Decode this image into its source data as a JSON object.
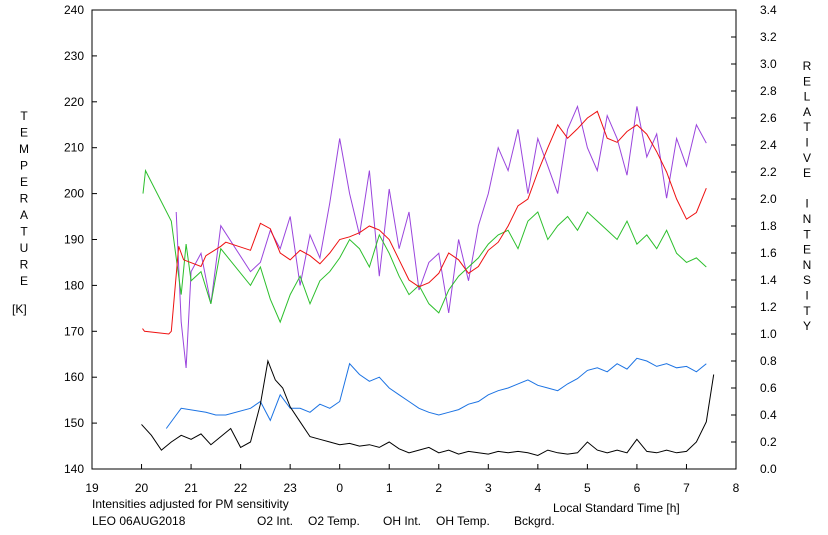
{
  "chart_data": {
    "type": "line",
    "ylabel_left": [
      "T",
      "E",
      "M",
      "P",
      "E",
      "R",
      "A",
      "T",
      "U",
      "R",
      "E"
    ],
    "ylabel_left_unit": "[K]",
    "ylabel_right": [
      "R",
      "E",
      "L",
      "A",
      "T",
      "I",
      "V",
      "E",
      "",
      "I",
      "N",
      "T",
      "E",
      "N",
      "S",
      "I",
      "T",
      "Y"
    ],
    "xlabel": "Local Standard Time [h]",
    "note": "Intensities adjusted for PM sensitivity",
    "station": "LEO 06AUG2018",
    "x_range": [
      19,
      32
    ],
    "x_tick_labels": [
      "19",
      "20",
      "21",
      "22",
      "23",
      "0",
      "1",
      "2",
      "3",
      "4",
      "5",
      "6",
      "7",
      "8"
    ],
    "y_left_range": [
      140,
      240
    ],
    "y_left_ticks": [
      "140",
      "150",
      "160",
      "170",
      "180",
      "190",
      "200",
      "210",
      "220",
      "230",
      "240"
    ],
    "y_right_range": [
      0,
      3.4
    ],
    "y_right_ticks": [
      "0.0",
      "0.2",
      "0.4",
      "0.6",
      "0.8",
      "1.0",
      "1.2",
      "1.4",
      "1.6",
      "1.8",
      "2.0",
      "2.2",
      "2.4",
      "2.6",
      "2.8",
      "3.0",
      "3.2",
      "3.4"
    ],
    "grid": false,
    "legend": [
      {
        "label": "O2 Int.",
        "color": "#1c73e3"
      },
      {
        "label": "O2 Temp.",
        "color": "#9a45dd"
      },
      {
        "label": "OH Int.",
        "color": "#ee1111"
      },
      {
        "label": "OH Temp.",
        "color": "#2cbf2c"
      },
      {
        "label": "Bckgrd.",
        "color": "#000000"
      }
    ],
    "note_color": "#2cbf2c",
    "series": [
      {
        "name": "O2 Temp.",
        "axis": "left",
        "color": "#9a45dd",
        "x": [
          20.7,
          20.8,
          20.9,
          21.0,
          21.2,
          21.4,
          21.6,
          22.2,
          22.4,
          22.6,
          22.8,
          23.0,
          23.2,
          23.4,
          23.6,
          23.8,
          24.0,
          24.2,
          24.4,
          24.6,
          24.8,
          25.0,
          25.2,
          25.4,
          25.6,
          25.8,
          26.0,
          26.2,
          26.4,
          26.6,
          26.8,
          27.0,
          27.2,
          27.4,
          27.6,
          27.8,
          28.0,
          28.2,
          28.4,
          28.6,
          28.8,
          29.0,
          29.2,
          29.4,
          29.6,
          29.8,
          30.0,
          30.2,
          30.4,
          30.6,
          30.8,
          31.0,
          31.2,
          31.4
        ],
        "y": [
          196,
          172,
          162,
          183,
          187,
          176,
          193,
          183,
          185,
          192,
          188,
          195,
          180,
          191,
          186,
          198,
          212,
          200,
          191,
          205,
          182,
          201,
          188,
          196,
          179,
          185,
          187,
          174,
          190,
          181,
          193,
          200,
          210,
          205,
          214,
          200,
          212,
          206,
          200,
          214,
          219,
          210,
          205,
          217,
          212,
          204,
          219,
          208,
          213,
          199,
          212,
          206,
          215,
          211
        ]
      },
      {
        "name": "OH Temp.",
        "axis": "left",
        "color": "#2cbf2c",
        "x": [
          20.03,
          20.08,
          20.6,
          20.7,
          20.8,
          20.9,
          21.0,
          21.2,
          21.4,
          21.6,
          22.2,
          22.4,
          22.6,
          22.8,
          23.0,
          23.2,
          23.4,
          23.6,
          23.8,
          24.0,
          24.2,
          24.4,
          24.6,
          24.8,
          25.0,
          25.2,
          25.4,
          25.6,
          25.8,
          26.0,
          26.2,
          26.4,
          26.6,
          26.8,
          27.0,
          27.2,
          27.4,
          27.6,
          27.8,
          28.0,
          28.2,
          28.4,
          28.6,
          28.8,
          29.0,
          29.2,
          29.4,
          29.6,
          29.8,
          30.0,
          30.2,
          30.4,
          30.6,
          30.8,
          31.0,
          31.2,
          31.4
        ],
        "y": [
          200,
          205,
          194,
          186,
          178,
          189,
          181,
          183,
          176,
          188,
          180,
          184,
          177,
          172,
          178,
          182,
          176,
          181,
          183,
          186,
          190,
          188,
          184,
          191,
          187,
          182,
          178,
          180,
          176,
          174,
          179,
          182,
          184,
          186,
          189,
          191,
          192,
          188,
          194,
          196,
          190,
          193,
          195,
          192,
          196,
          194,
          192,
          190,
          194,
          189,
          191,
          188,
          192,
          187,
          185,
          186,
          184
        ]
      },
      {
        "name": "OH Int.",
        "axis": "right",
        "color": "#ee1111",
        "x": [
          20.02,
          20.06,
          20.55,
          20.6,
          20.75,
          20.85,
          21.2,
          21.3,
          21.6,
          21.7,
          22.2,
          22.4,
          22.6,
          22.8,
          23.0,
          23.2,
          23.4,
          23.6,
          23.8,
          24.0,
          24.2,
          24.4,
          24.6,
          24.8,
          25.0,
          25.2,
          25.4,
          25.6,
          25.8,
          26.0,
          26.2,
          26.4,
          26.6,
          26.8,
          27.0,
          27.2,
          27.4,
          27.6,
          27.8,
          28.0,
          28.2,
          28.4,
          28.6,
          28.8,
          29.0,
          29.2,
          29.4,
          29.6,
          29.8,
          30.0,
          30.2,
          30.4,
          30.6,
          30.8,
          31.0,
          31.2,
          31.4
        ],
        "y": [
          1.04,
          1.02,
          1.0,
          1.02,
          1.65,
          1.55,
          1.5,
          1.58,
          1.65,
          1.68,
          1.62,
          1.82,
          1.78,
          1.6,
          1.55,
          1.62,
          1.58,
          1.52,
          1.6,
          1.7,
          1.72,
          1.75,
          1.8,
          1.77,
          1.7,
          1.55,
          1.4,
          1.35,
          1.38,
          1.45,
          1.6,
          1.55,
          1.45,
          1.5,
          1.62,
          1.68,
          1.8,
          1.95,
          2.0,
          2.2,
          2.38,
          2.55,
          2.45,
          2.52,
          2.6,
          2.65,
          2.45,
          2.42,
          2.5,
          2.55,
          2.48,
          2.35,
          2.2,
          2.0,
          1.85,
          1.9,
          2.08
        ]
      },
      {
        "name": "O2 Int.",
        "axis": "right",
        "color": "#1c73e3",
        "x": [
          20.5,
          20.7,
          20.8,
          21.3,
          21.5,
          21.7,
          22.2,
          22.4,
          22.6,
          22.8,
          23.0,
          23.2,
          23.4,
          23.6,
          23.8,
          24.0,
          24.2,
          24.4,
          24.6,
          24.8,
          25.0,
          25.2,
          25.4,
          25.6,
          25.8,
          26.0,
          26.2,
          26.4,
          26.6,
          26.8,
          27.0,
          27.2,
          27.4,
          27.6,
          27.8,
          28.0,
          28.2,
          28.4,
          28.6,
          28.8,
          29.0,
          29.2,
          29.4,
          29.6,
          29.8,
          30.0,
          30.2,
          30.4,
          30.6,
          30.8,
          31.0,
          31.2,
          31.4
        ],
        "y": [
          0.3,
          0.4,
          0.45,
          0.42,
          0.4,
          0.4,
          0.45,
          0.5,
          0.36,
          0.55,
          0.45,
          0.45,
          0.42,
          0.48,
          0.45,
          0.5,
          0.78,
          0.7,
          0.65,
          0.68,
          0.6,
          0.55,
          0.5,
          0.45,
          0.42,
          0.4,
          0.42,
          0.44,
          0.48,
          0.5,
          0.55,
          0.58,
          0.6,
          0.63,
          0.66,
          0.62,
          0.6,
          0.58,
          0.63,
          0.67,
          0.73,
          0.75,
          0.72,
          0.78,
          0.74,
          0.82,
          0.8,
          0.76,
          0.78,
          0.75,
          0.76,
          0.72,
          0.78
        ]
      },
      {
        "name": "Bckgrd.",
        "axis": "right",
        "color": "#000000",
        "x": [
          20.0,
          20.2,
          20.4,
          20.6,
          20.8,
          21.0,
          21.2,
          21.4,
          21.6,
          21.8,
          22.0,
          22.2,
          22.4,
          22.55,
          22.7,
          22.85,
          23.0,
          23.2,
          23.4,
          23.6,
          23.8,
          24.0,
          24.2,
          24.4,
          24.6,
          24.8,
          25.0,
          25.2,
          25.4,
          25.6,
          25.8,
          26.0,
          26.2,
          26.4,
          26.6,
          26.8,
          27.0,
          27.2,
          27.4,
          27.6,
          27.8,
          28.0,
          28.2,
          28.4,
          28.6,
          28.8,
          29.0,
          29.2,
          29.4,
          29.6,
          29.8,
          30.0,
          30.2,
          30.4,
          30.6,
          30.8,
          31.0,
          31.2,
          31.4,
          31.55
        ],
        "y": [
          0.33,
          0.25,
          0.14,
          0.2,
          0.25,
          0.22,
          0.26,
          0.18,
          0.24,
          0.3,
          0.16,
          0.2,
          0.48,
          0.8,
          0.66,
          0.6,
          0.46,
          0.35,
          0.24,
          0.22,
          0.2,
          0.18,
          0.19,
          0.17,
          0.18,
          0.16,
          0.2,
          0.15,
          0.12,
          0.14,
          0.16,
          0.12,
          0.14,
          0.11,
          0.13,
          0.12,
          0.11,
          0.13,
          0.12,
          0.13,
          0.12,
          0.1,
          0.14,
          0.12,
          0.11,
          0.12,
          0.2,
          0.14,
          0.12,
          0.14,
          0.12,
          0.22,
          0.13,
          0.12,
          0.14,
          0.12,
          0.13,
          0.2,
          0.35,
          0.7
        ]
      }
    ]
  }
}
